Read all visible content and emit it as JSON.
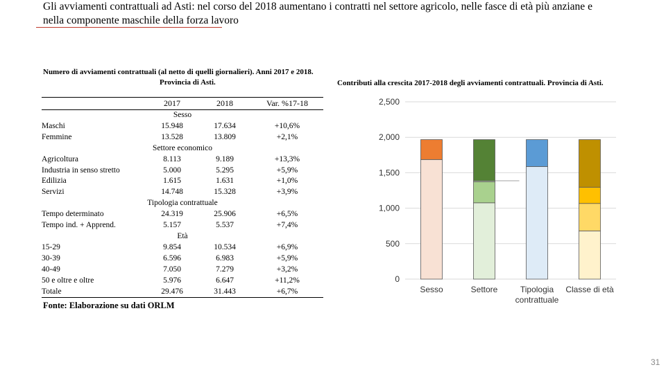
{
  "title": "Gli avviamenti contrattuali ad Asti: nel corso del 2018 aumentano i contratti nel settore agricolo, nelle fasce di età più anziane e nella componente maschile della forza lavoro",
  "table": {
    "caption_line1": "Numero di avviamenti contrattuali (al netto di quelli giornalieri). Anni 2017 e 2018.",
    "caption_line2": "Provincia di Asti.",
    "headers": [
      "",
      "2017",
      "2018",
      "Var. %17-18"
    ],
    "groups": [
      {
        "name": "Sesso",
        "rows": [
          {
            "label": "Maschi",
            "v2017": "15.948",
            "v2018": "17.634",
            "var": "+10,6%"
          },
          {
            "label": "Femmine",
            "v2017": "13.528",
            "v2018": "13.809",
            "var": "+2,1%"
          }
        ]
      },
      {
        "name": "Settore economico",
        "rows": [
          {
            "label": "Agricoltura",
            "v2017": "8.113",
            "v2018": "9.189",
            "var": "+13,3%"
          },
          {
            "label": "Industria in senso stretto",
            "v2017": "5.000",
            "v2018": "5.295",
            "var": "+5,9%"
          },
          {
            "label": "Edilizia",
            "v2017": "1.615",
            "v2018": "1.631",
            "var": "+1,0%"
          },
          {
            "label": "Servizi",
            "v2017": "14.748",
            "v2018": "15.328",
            "var": "+3,9%"
          }
        ]
      },
      {
        "name": "Tipologia contrattuale",
        "rows": [
          {
            "label": "Tempo determinato",
            "v2017": "24.319",
            "v2018": "25.906",
            "var": "+6,5%"
          },
          {
            "label": "Tempo ind. + Apprend.",
            "v2017": "5.157",
            "v2018": "5.537",
            "var": "+7,4%"
          }
        ]
      },
      {
        "name": "Età",
        "rows": [
          {
            "label": "15-29",
            "v2017": "9.854",
            "v2018": "10.534",
            "var": "+6,9%"
          },
          {
            "label": "30-39",
            "v2017": "6.596",
            "v2018": "6.983",
            "var": "+5,9%"
          },
          {
            "label": "40-49",
            "v2017": "7.050",
            "v2018": "7.279",
            "var": "+3,2%"
          },
          {
            "label": "50 e oltre e oltre",
            "v2017": "5.976",
            "v2018": "6.647",
            "var": "+11,2%"
          }
        ]
      }
    ],
    "total": {
      "label": "Totale",
      "v2017": "29.476",
      "v2018": "31.443",
      "var": "+6,7%"
    },
    "source": "Fonte: Elaborazione su dati ORLM"
  },
  "chart_caption": "Contributi alla crescita 2017-2018 degli avviamenti contrattuali. Provincia di Asti.",
  "page_number": "31",
  "chart_data": {
    "type": "bar",
    "stacked": true,
    "title": "Contributi alla crescita 2017-2018 degli avviamenti contrattuali. Provincia di Asti.",
    "categories": [
      "Sesso",
      "Settore",
      "Tipologia contrattuale",
      "Classe di età"
    ],
    "ylim": [
      0,
      2500
    ],
    "yticks": [
      0,
      500,
      1000,
      1500,
      2000,
      2500
    ],
    "ytick_labels": [
      "0",
      "500",
      "1,000",
      "1,500",
      "2,000",
      "2,500"
    ],
    "grid": true,
    "legend": "none",
    "series_stacks": [
      {
        "category": "Sesso",
        "segments": [
          {
            "value": 1686,
            "color": "#f8e1d4"
          },
          {
            "value": 281,
            "color": "#ed7d31"
          }
        ]
      },
      {
        "category": "Settore",
        "segments": [
          {
            "value": 1076,
            "color": "#e2efda"
          },
          {
            "value": 295,
            "color": "#a9d18e"
          },
          {
            "value": 16,
            "color": "#c5e0b4"
          },
          {
            "value": 580,
            "color": "#548235"
          }
        ]
      },
      {
        "category": "Tipologia contrattuale",
        "segments": [
          {
            "value": 1587,
            "color": "#deebf7"
          },
          {
            "value": 380,
            "color": "#5b9bd5"
          }
        ]
      },
      {
        "category": "Classe di età",
        "segments": [
          {
            "value": 680,
            "color": "#fff2cc"
          },
          {
            "value": 387,
            "color": "#ffd966"
          },
          {
            "value": 229,
            "color": "#ffc000"
          },
          {
            "value": 671,
            "color": "#bf9000"
          }
        ]
      }
    ]
  }
}
